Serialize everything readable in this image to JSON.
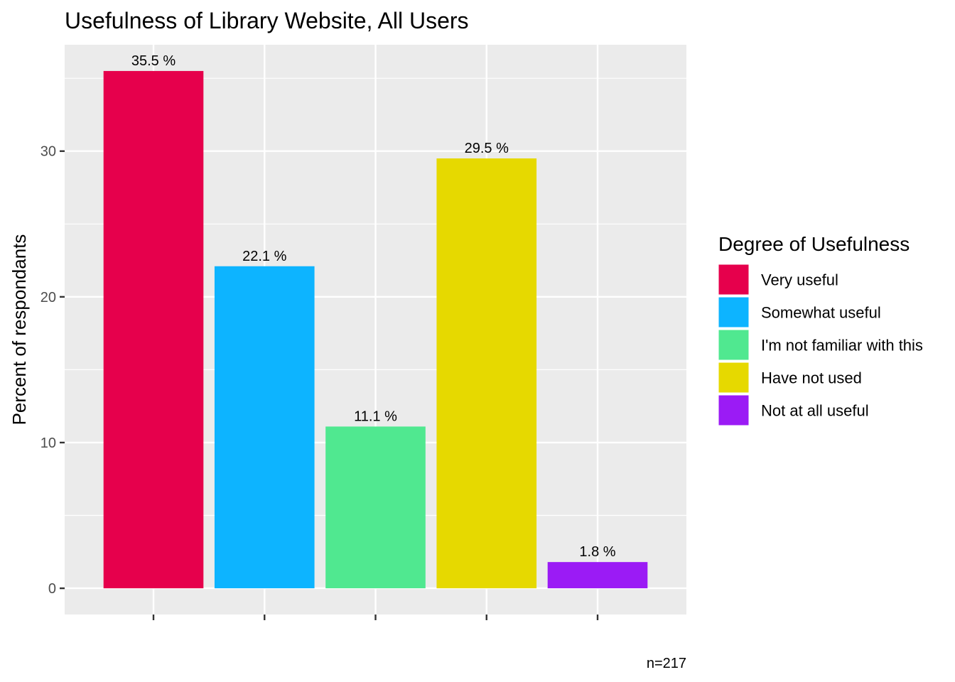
{
  "chart_data": {
    "type": "bar",
    "title": "Usefulness of Library Website, All Users",
    "ylabel": "Percent of respondants",
    "xlabel": "",
    "caption": "n=217",
    "ylim": [
      -1.8,
      37.3
    ],
    "yticks": [
      0,
      10,
      20,
      30
    ],
    "grid": true,
    "legend": {
      "title": "Degree of Usefulness",
      "position": "right"
    },
    "categories": [
      "Very useful",
      "Somewhat useful",
      "I'm not familiar with this",
      "Have not used",
      "Not at all useful"
    ],
    "values": [
      35.5,
      22.1,
      11.1,
      29.5,
      1.8
    ],
    "data_labels": [
      "35.5 %",
      "22.1 %",
      "11.1 %",
      "29.5 %",
      "1.8 %"
    ],
    "colors": [
      "#E6004C",
      "#0DB4FF",
      "#50E890",
      "#E6D900",
      "#9B1BF5"
    ]
  }
}
